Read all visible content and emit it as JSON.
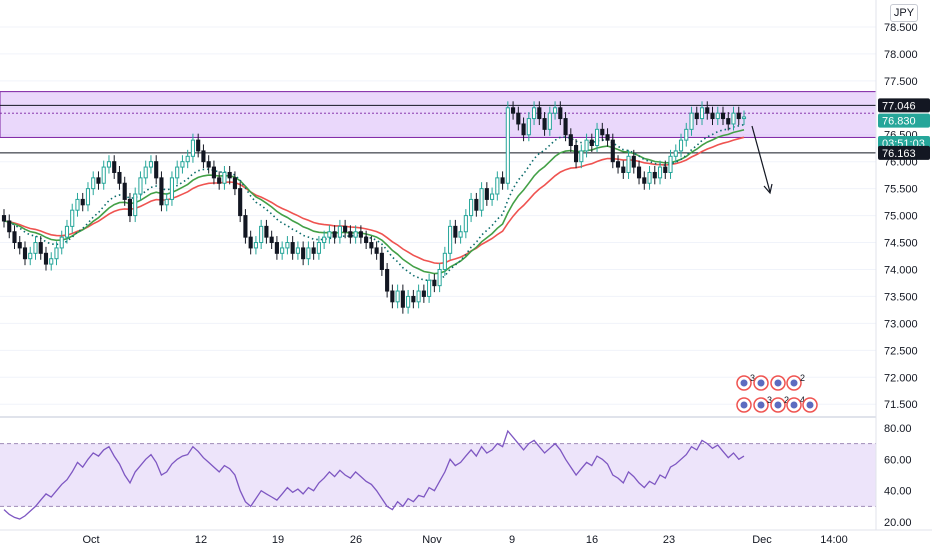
{
  "currency": "JPY",
  "chart_data": {
    "type": "candlestick",
    "price_axis": {
      "ticks": [
        "78.500",
        "78.000",
        "77.500",
        "77.000",
        "76.500",
        "76.000",
        "75.500",
        "75.000",
        "74.500",
        "74.000",
        "73.500",
        "73.000",
        "72.500",
        "72.000",
        "71.500"
      ],
      "ylim": [
        71.3,
        79.0
      ]
    },
    "rsi_axis": {
      "ticks": [
        "80.00",
        "60.00",
        "40.00",
        "20.00"
      ],
      "ylim": [
        15,
        85
      ],
      "band": [
        30,
        70
      ]
    },
    "x_ticks": [
      "Oct",
      "12",
      "19",
      "26",
      "Nov",
      "9",
      "16",
      "23",
      "Dec",
      "14:00"
    ],
    "price_labels": {
      "resistance": "77.046",
      "last": "76.830",
      "countdown": "03:51:03",
      "support": "76.163"
    },
    "zone": {
      "top": 77.3,
      "bottom": 76.45,
      "mid": 76.9
    },
    "resistance_level": 77.046,
    "support_level": 76.163,
    "colors": {
      "up": "#26a69a",
      "down": "#131722",
      "zone": "#d9b8f7",
      "rsi": "#7e57c2",
      "ema_slow": "#ef5350",
      "ema_mid": "#43a047",
      "ema_fast": "#0b6b6b"
    },
    "closes": [
      74.9,
      74.7,
      74.5,
      74.4,
      74.2,
      74.3,
      74.5,
      74.3,
      74.1,
      74.2,
      74.4,
      74.6,
      74.8,
      75.1,
      75.3,
      75.2,
      75.5,
      75.7,
      75.6,
      75.9,
      76.0,
      75.8,
      75.6,
      75.3,
      75.0,
      75.4,
      75.7,
      75.9,
      76.0,
      75.7,
      75.2,
      75.3,
      75.7,
      75.9,
      76.0,
      76.1,
      76.4,
      76.2,
      76.0,
      75.9,
      75.7,
      75.6,
      75.8,
      75.7,
      75.5,
      75.0,
      74.6,
      74.4,
      74.5,
      74.8,
      74.6,
      74.5,
      74.3,
      74.4,
      74.5,
      74.3,
      74.4,
      74.2,
      74.4,
      74.3,
      74.5,
      74.6,
      74.7,
      74.6,
      74.8,
      74.7,
      74.6,
      74.7,
      74.6,
      74.5,
      74.4,
      74.3,
      74.0,
      73.6,
      73.4,
      73.6,
      73.3,
      73.5,
      73.4,
      73.6,
      73.5,
      73.8,
      73.7,
      74.0,
      74.3,
      74.8,
      74.6,
      74.7,
      75.0,
      75.3,
      75.1,
      75.5,
      75.3,
      75.4,
      75.7,
      75.6,
      77.0,
      76.9,
      76.7,
      76.5,
      76.8,
      77.0,
      76.8,
      76.6,
      76.9,
      77.0,
      76.8,
      76.5,
      76.3,
      76.0,
      76.2,
      76.4,
      76.3,
      76.6,
      76.5,
      76.4,
      76.0,
      75.9,
      75.8,
      76.1,
      75.9,
      75.7,
      75.6,
      75.8,
      75.7,
      75.9,
      75.8,
      76.1,
      76.2,
      76.4,
      76.6,
      76.9,
      76.8,
      77.0,
      76.9,
      76.8,
      76.9,
      76.8,
      76.7,
      76.9,
      76.8,
      76.83
    ],
    "rsi": [
      28,
      25,
      23,
      22,
      24,
      27,
      30,
      34,
      38,
      36,
      40,
      44,
      47,
      52,
      58,
      55,
      60,
      64,
      62,
      66,
      68,
      62,
      57,
      50,
      45,
      52,
      56,
      60,
      63,
      58,
      50,
      52,
      57,
      60,
      62,
      63,
      68,
      65,
      61,
      58,
      55,
      52,
      56,
      54,
      50,
      40,
      33,
      30,
      35,
      40,
      38,
      36,
      34,
      38,
      42,
      39,
      41,
      38,
      42,
      40,
      45,
      48,
      52,
      49,
      53,
      50,
      48,
      52,
      49,
      46,
      44,
      40,
      35,
      30,
      28,
      33,
      30,
      35,
      33,
      37,
      36,
      42,
      40,
      46,
      52,
      60,
      56,
      58,
      62,
      66,
      62,
      68,
      64,
      66,
      70,
      68,
      78,
      74,
      70,
      66,
      70,
      72,
      68,
      64,
      67,
      70,
      66,
      60,
      55,
      50,
      54,
      58,
      56,
      62,
      60,
      57,
      50,
      48,
      45,
      52,
      49,
      45,
      42,
      46,
      44,
      50,
      48,
      55,
      57,
      60,
      63,
      68,
      66,
      72,
      70,
      67,
      69,
      65,
      61,
      64,
      60,
      62
    ]
  },
  "event_badges": {
    "row1": [
      "3",
      "2"
    ],
    "row2": [
      "3",
      "2",
      "4"
    ]
  }
}
